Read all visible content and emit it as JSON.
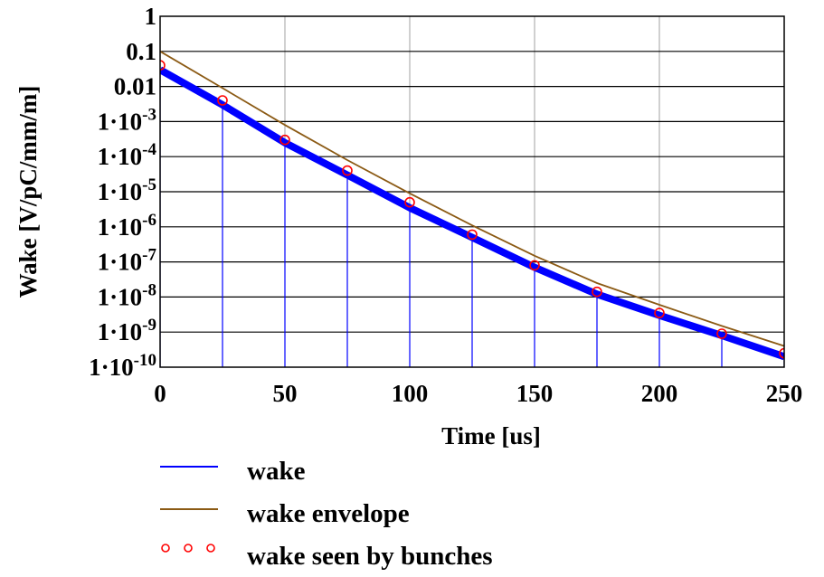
{
  "chart_data": {
    "type": "line",
    "xlabel": "Time [us]",
    "ylabel": "Wake [V/pC/mm/m]",
    "xlim": [
      0,
      250
    ],
    "ylim": [
      1e-10,
      1
    ],
    "y_scale": "log",
    "grid": true,
    "x_ticks": [
      {
        "value": 0,
        "label": "0"
      },
      {
        "value": 50,
        "label": "50"
      },
      {
        "value": 100,
        "label": "100"
      },
      {
        "value": 150,
        "label": "150"
      },
      {
        "value": 200,
        "label": "200"
      },
      {
        "value": 250,
        "label": "250"
      }
    ],
    "y_ticks": [
      {
        "value": 1,
        "base": "1",
        "exp": ""
      },
      {
        "value": 0.1,
        "base": "0.1",
        "exp": ""
      },
      {
        "value": 0.01,
        "base": "0.01",
        "exp": ""
      },
      {
        "value": 0.001,
        "base": "1·10",
        "exp": "-3"
      },
      {
        "value": 0.0001,
        "base": "1·10",
        "exp": "-4"
      },
      {
        "value": 1e-05,
        "base": "1·10",
        "exp": "-5"
      },
      {
        "value": 1e-06,
        "base": "1·10",
        "exp": "-6"
      },
      {
        "value": 1e-07,
        "base": "1·10",
        "exp": "-7"
      },
      {
        "value": 1e-08,
        "base": "1·10",
        "exp": "-8"
      },
      {
        "value": 1e-09,
        "base": "1·10",
        "exp": "-9"
      },
      {
        "value": 1e-10,
        "base": "1·10",
        "exp": "-10"
      }
    ],
    "legend_position": "bottom",
    "series": [
      {
        "name": "wake",
        "style": "line",
        "color": "#0000ff",
        "x": [
          0,
          25,
          50,
          75,
          100,
          125,
          150,
          175,
          200,
          225,
          250
        ],
        "y": [
          0.03,
          0.003,
          0.00025,
          3e-05,
          3.5e-06,
          5e-07,
          7e-08,
          1.2e-08,
          3e-09,
          8e-10,
          2e-10
        ]
      },
      {
        "name": "wake envelope",
        "style": "line",
        "color": "#8b5a14",
        "x": [
          0,
          25,
          50,
          75,
          100,
          125,
          150,
          175,
          200,
          225,
          250
        ],
        "y": [
          0.1,
          0.009,
          0.0008,
          8e-05,
          9e-06,
          1.1e-06,
          1.5e-07,
          2.5e-08,
          6e-09,
          1.5e-09,
          4e-10
        ]
      },
      {
        "name": "wake seen by bunches",
        "style": "markers",
        "color": "#ff0000",
        "x": [
          0,
          25,
          50,
          75,
          100,
          125,
          150,
          175,
          200,
          225,
          250
        ],
        "y": [
          0.04,
          0.004,
          0.0003,
          4e-05,
          5e-06,
          6e-07,
          8e-08,
          1.4e-08,
          3.5e-09,
          9e-10,
          2.5e-10
        ]
      }
    ]
  }
}
